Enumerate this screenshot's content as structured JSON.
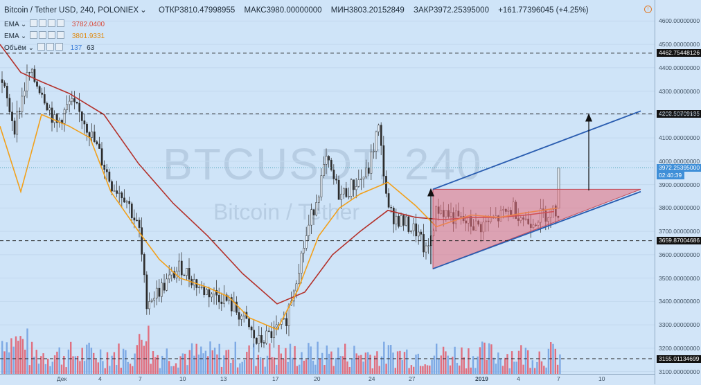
{
  "header": {
    "symbol": "Bitcoin / Tether USD, 240, POLONIEX",
    "open": "ОТКР3810.47998955",
    "high": "МАКС3980.00000000",
    "low": "МИН3803.20152849",
    "close": "ЗАКР3972.25395000",
    "change": "+161.77396045 (+4.25%)"
  },
  "indicators": [
    {
      "name": "EMA",
      "value": "3782.0400",
      "color": "#d94a3a"
    },
    {
      "name": "EMA",
      "value": "3801.9331",
      "color": "#f29a1e"
    },
    {
      "name": "Объём",
      "value": "137",
      "value2": "63",
      "color": "#3d7fd9"
    }
  ],
  "watermark": {
    "ticker": "BTCUSDT, 240",
    "pair": "Bitcoin / Tether"
  },
  "chart_data": {
    "type": "candlestick",
    "x_ticks": [
      "Дек",
      "4",
      "7",
      "10",
      "13",
      "17",
      "20",
      "24",
      "27",
      "2019",
      "4",
      "7",
      "10"
    ],
    "y_ticks": [
      "4600.00000000",
      "4500.00000000",
      "4400.00000000",
      "4300.00000000",
      "4200.00000000",
      "4100.00000000",
      "4000.00000000",
      "3900.00000000",
      "3800.00000000",
      "3700.00000000",
      "3600.00000000",
      "3500.00000000",
      "3400.00000000",
      "3300.00000000",
      "3200.00000000",
      "3100.00000000"
    ],
    "ylim": [
      3090,
      4690
    ],
    "price_levels": [
      {
        "label": "4462.75448126",
        "value": 4462.75
      },
      {
        "label": "4202.50709135",
        "value": 4202.51
      },
      {
        "label": "3659.87004686",
        "value": 3659.87
      },
      {
        "label": "3155.01134699",
        "value": 3155.01
      }
    ],
    "last_price": {
      "label": "3972.25395000",
      "timer": "02:40:39",
      "value": 3972.25
    },
    "ema_slow": [
      [
        0,
        4500
      ],
      [
        30,
        4380
      ],
      [
        60,
        4340
      ],
      [
        100,
        4290
      ],
      [
        150,
        4200
      ],
      [
        200,
        3990
      ],
      [
        250,
        3820
      ],
      [
        300,
        3680
      ],
      [
        350,
        3520
      ],
      [
        400,
        3390
      ],
      [
        440,
        3440
      ],
      [
        480,
        3600
      ],
      [
        520,
        3700
      ],
      [
        560,
        3790
      ],
      [
        600,
        3760
      ],
      [
        640,
        3750
      ],
      [
        680,
        3760
      ],
      [
        720,
        3760
      ],
      [
        760,
        3770
      ],
      [
        800,
        3785
      ]
    ],
    "ema_fast": [
      [
        0,
        4150
      ],
      [
        30,
        3870
      ],
      [
        60,
        4200
      ],
      [
        100,
        4150
      ],
      [
        130,
        4100
      ],
      [
        160,
        3870
      ],
      [
        200,
        3700
      ],
      [
        230,
        3580
      ],
      [
        260,
        3500
      ],
      [
        300,
        3460
      ],
      [
        330,
        3420
      ],
      [
        360,
        3330
      ],
      [
        400,
        3280
      ],
      [
        430,
        3450
      ],
      [
        460,
        3680
      ],
      [
        490,
        3800
      ],
      [
        520,
        3860
      ],
      [
        560,
        3910
      ],
      [
        600,
        3810
      ],
      [
        630,
        3720
      ],
      [
        680,
        3770
      ],
      [
        720,
        3760
      ],
      [
        760,
        3780
      ],
      [
        805,
        3800
      ]
    ],
    "pattern": {
      "type": "ascending-triangle",
      "top": 3880,
      "apex_x": 925,
      "left_x": 625,
      "bottom_left": 3540
    }
  }
}
